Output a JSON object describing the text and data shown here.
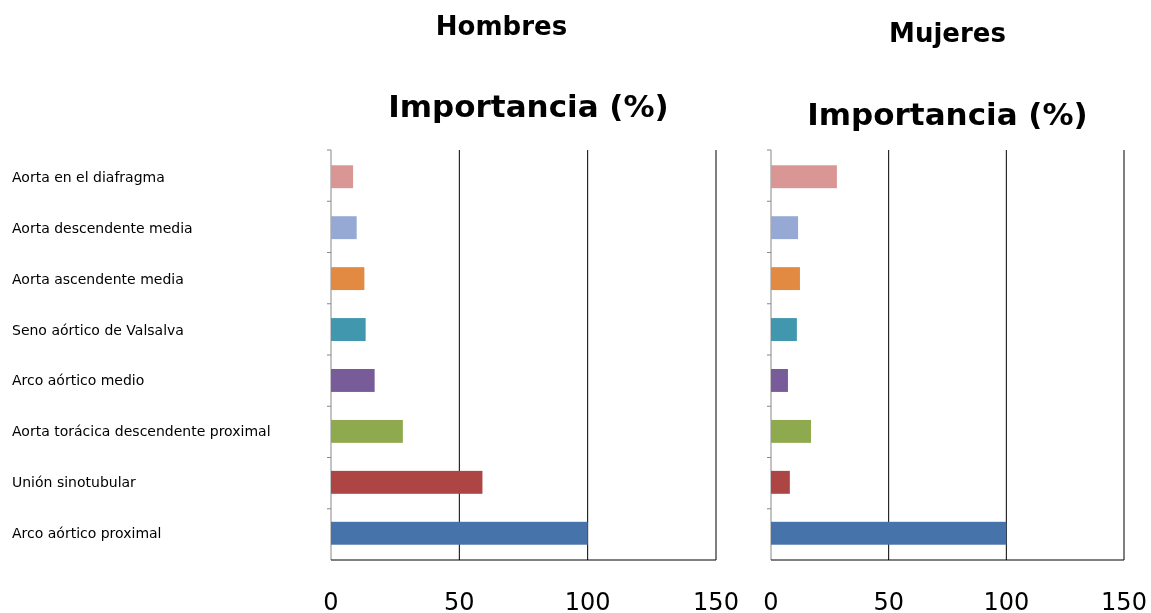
{
  "chart_data": [
    {
      "type": "bar",
      "orientation": "horizontal",
      "title": "Hombres",
      "subtitle": "Importancia (%)",
      "categories": [
        "Aorta en el diafragma",
        "Aorta descendente media",
        "Aorta ascendente media",
        "Seno aórtico de Valsalva",
        "Arco aórtico medio",
        "Aorta torácica descendente proximal",
        "Unión sinotubular",
        "Arco aórtico proximal"
      ],
      "values": [
        8.6,
        10,
        13,
        13.5,
        17,
        28,
        59,
        100
      ],
      "colors": [
        "#d99694",
        "#95a9d4",
        "#e28a42",
        "#4198ae",
        "#775c99",
        "#8faa4e",
        "#ac4543",
        "#4673a9"
      ],
      "xlim": [
        0,
        150
      ],
      "xticks": [
        0,
        50,
        100,
        150
      ],
      "grid": "x"
    },
    {
      "type": "bar",
      "orientation": "horizontal",
      "title": "Mujeres",
      "subtitle": "Importancia (%)",
      "categories": [
        null,
        null,
        null,
        null,
        null,
        null,
        null,
        null
      ],
      "values": [
        28,
        11.5,
        12.3,
        11,
        7.2,
        17,
        8,
        100
      ],
      "colors": [
        "#d99694",
        "#95a9d4",
        "#e28a42",
        "#4198ae",
        "#775c99",
        "#8faa4e",
        "#ac4543",
        "#4673a9"
      ],
      "xlim": [
        0,
        150
      ],
      "xticks": [
        0,
        50,
        100,
        150
      ],
      "grid": "x",
      "tick_labels": "x"
    }
  ]
}
